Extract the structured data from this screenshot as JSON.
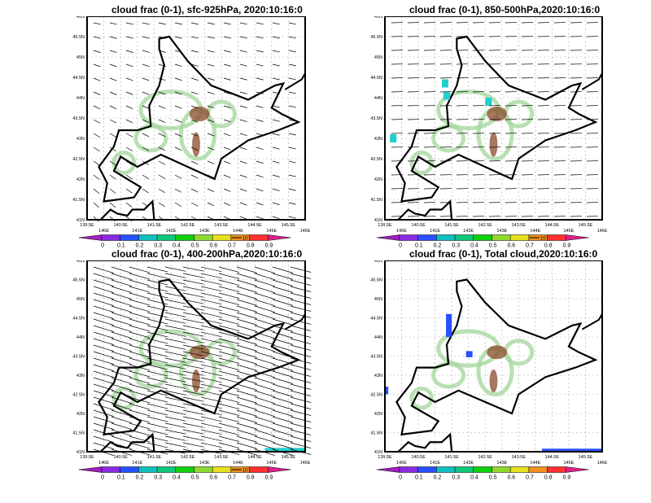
{
  "panels": [
    {
      "title": "cloud frac (0-1), sfc-925hPa, 2020:10:16:0",
      "vectors": "low"
    },
    {
      "title": "cloud frac (0-1), 850-500hPa,2020:10:16:0",
      "vectors": "mid"
    },
    {
      "title": "cloud frac (0-1), 400-200hPa,2020:10:16:0",
      "vectors": "high"
    },
    {
      "title": "cloud frac (0-1), Total cloud,2020:10:16:0",
      "vectors": "none"
    }
  ],
  "lon_ticks": [
    "139.5E",
    "140E",
    "140.5E",
    "141E",
    "141.5E",
    "142E",
    "142.5E",
    "143E",
    "143.5E",
    "144E",
    "144.5E",
    "145E",
    "145.5E",
    "146E"
  ],
  "lat_ticks": [
    "41N",
    "41.5N",
    "42N",
    "42.5N",
    "43N",
    "43.5N",
    "44N",
    "44.5N",
    "45N",
    "45.5N",
    "46N"
  ],
  "colorbar": {
    "labels": [
      "0",
      "0.1",
      "0.2",
      "0.3",
      "0.4",
      "0.5",
      "0.6",
      "0.7",
      "0.8",
      "0.9"
    ],
    "colors": [
      "#a020c0",
      "#8a2be2",
      "#2850ff",
      "#10c0c0",
      "#10c87a",
      "#10d010",
      "#90d830",
      "#e8e020",
      "#f09020",
      "#ff3030",
      "#e0208a"
    ],
    "vector_reference": "10"
  },
  "colors": {
    "coast": "#000000",
    "terrain_low": "#a8d8a0",
    "terrain_high": "#8b4a2a",
    "cloud_low": "#20d0d0",
    "cloud_high": "#2850ff"
  }
}
